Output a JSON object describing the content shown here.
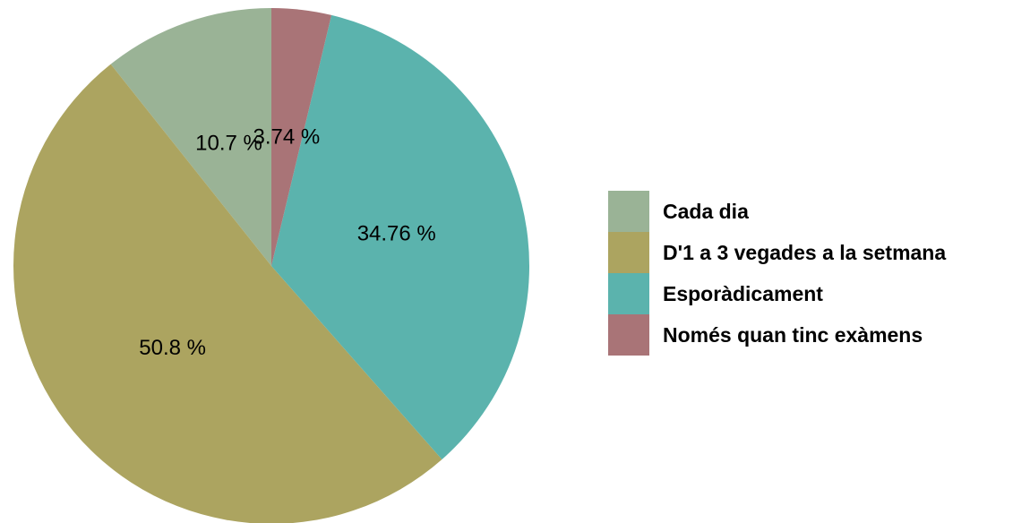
{
  "chart_data": {
    "type": "pie",
    "categories": [
      "Cada dia",
      "D'1 a 3 vegades a la setmana",
      "Esporàdicament",
      "Només quan tinc exàmens"
    ],
    "values": [
      10.7,
      50.8,
      34.76,
      3.74
    ],
    "value_labels": [
      "10.7 %",
      "50.8 %",
      "34.76 %",
      "3.74 %"
    ],
    "colors": [
      "#9ab396",
      "#aca460",
      "#5bb3ad",
      "#a97477"
    ],
    "legend": "right"
  }
}
